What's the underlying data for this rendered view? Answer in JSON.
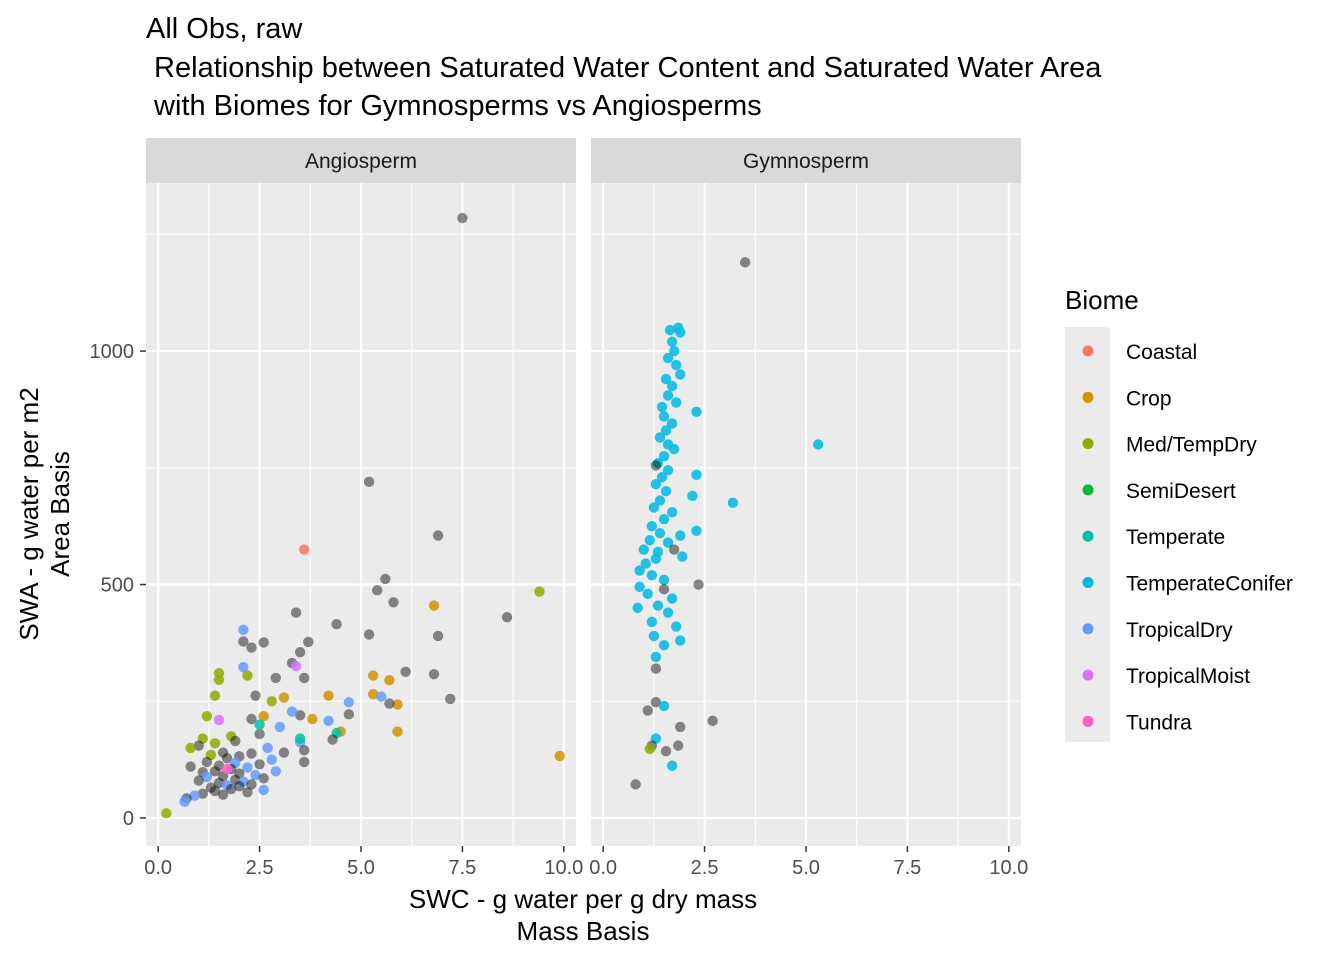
{
  "chart_data": {
    "type": "scatter",
    "title_lines": [
      "All Obs, raw",
      " Relationship between Saturated Water Content and Saturated Water Area",
      " with Biomes for Gymnosperms vs Angiosperms"
    ],
    "xlabel_lines": [
      "SWC - g water per g dry mass",
      "Mass Basis"
    ],
    "ylabel_lines": [
      "SWA - g water per m2",
      "Area Basis"
    ],
    "xlim": [
      -0.3,
      10.3
    ],
    "ylim": [
      -60,
      1360
    ],
    "x_ticks": [
      {
        "value": 0,
        "label": "0.0"
      },
      {
        "value": 2.5,
        "label": "2.5"
      },
      {
        "value": 5,
        "label": "5.0"
      },
      {
        "value": 7.5,
        "label": "7.5"
      },
      {
        "value": 10,
        "label": "10.0"
      }
    ],
    "y_ticks": [
      {
        "value": 0,
        "label": "0"
      },
      {
        "value": 500,
        "label": "500"
      },
      {
        "value": 1000,
        "label": "1000"
      }
    ],
    "grid": true,
    "legend": {
      "title": "Biome",
      "position": "right",
      "entries": [
        {
          "name": "Coastal",
          "color": "#F8766D"
        },
        {
          "name": "Crop",
          "color": "#D39200"
        },
        {
          "name": "Med/TempDry",
          "color": "#93AA00"
        },
        {
          "name": "SemiDesert",
          "color": "#00BA38"
        },
        {
          "name": "Temperate",
          "color": "#00C19F"
        },
        {
          "name": "TemperateConifer",
          "color": "#00B9E3"
        },
        {
          "name": "TropicalDry",
          "color": "#619CFF"
        },
        {
          "name": "TropicalMoist",
          "color": "#DB72FB"
        },
        {
          "name": "Tundra",
          "color": "#FF61C3"
        }
      ]
    },
    "no_biome_color": "#000000",
    "panels": [
      {
        "strip": "Angiosperm",
        "points": [
          [
            7.5,
            1285,
            "none"
          ],
          [
            5.2,
            720,
            "none"
          ],
          [
            6.9,
            605,
            "none"
          ],
          [
            3.6,
            575,
            "Coastal"
          ],
          [
            9.4,
            485,
            "Med/TempDry"
          ],
          [
            5.6,
            512,
            "none"
          ],
          [
            5.4,
            488,
            "none"
          ],
          [
            5.8,
            462,
            "none"
          ],
          [
            6.8,
            455,
            "Crop"
          ],
          [
            3.4,
            440,
            "none"
          ],
          [
            8.6,
            430,
            "none"
          ],
          [
            4.4,
            415,
            "none"
          ],
          [
            5.2,
            393,
            "none"
          ],
          [
            6.9,
            390,
            "none"
          ],
          [
            2.1,
            403,
            "TropicalDry"
          ],
          [
            2.1,
            378,
            "none"
          ],
          [
            3.7,
            377,
            "none"
          ],
          [
            2.6,
            376,
            "none"
          ],
          [
            2.3,
            365,
            "none"
          ],
          [
            3.5,
            355,
            "none"
          ],
          [
            3.3,
            332,
            "none"
          ],
          [
            3.4,
            325,
            "TropicalMoist"
          ],
          [
            2.1,
            323,
            "TropicalDry"
          ],
          [
            6.1,
            313,
            "none"
          ],
          [
            1.5,
            310,
            "Med/TempDry"
          ],
          [
            6.8,
            308,
            "none"
          ],
          [
            1.5,
            296,
            "Med/TempDry"
          ],
          [
            5.3,
            305,
            "Crop"
          ],
          [
            2.2,
            305,
            "Med/TempDry"
          ],
          [
            2.9,
            300,
            "none"
          ],
          [
            5.7,
            295,
            "Crop"
          ],
          [
            3.6,
            300,
            "none"
          ],
          [
            7.2,
            255,
            "none"
          ],
          [
            5.3,
            265,
            "Crop"
          ],
          [
            5.5,
            260,
            "TropicalDry"
          ],
          [
            4.2,
            262,
            "Crop"
          ],
          [
            3.1,
            258,
            "Crop"
          ],
          [
            2.4,
            262,
            "none"
          ],
          [
            1.4,
            262,
            "Med/TempDry"
          ],
          [
            2.8,
            250,
            "Med/TempDry"
          ],
          [
            5.9,
            243,
            "Crop"
          ],
          [
            5.7,
            245,
            "none"
          ],
          [
            4.7,
            248,
            "TropicalDry"
          ],
          [
            4.7,
            222,
            "none"
          ],
          [
            3.5,
            220,
            "none"
          ],
          [
            3.3,
            228,
            "TropicalDry"
          ],
          [
            3.8,
            212,
            "Crop"
          ],
          [
            2.6,
            218,
            "Crop"
          ],
          [
            1.2,
            218,
            "Med/TempDry"
          ],
          [
            2.3,
            212,
            "none"
          ],
          [
            4.2,
            208,
            "TropicalDry"
          ],
          [
            4.5,
            185,
            "Crop"
          ],
          [
            5.9,
            185,
            "Crop"
          ],
          [
            4.4,
            182,
            "Temperate"
          ],
          [
            3.0,
            195,
            "TropicalDry"
          ],
          [
            4.3,
            168,
            "none"
          ],
          [
            9.9,
            133,
            "Crop"
          ],
          [
            3.5,
            162,
            "TropicalDry"
          ],
          [
            2.5,
            180,
            "none"
          ],
          [
            1.8,
            175,
            "Med/TempDry"
          ],
          [
            1.1,
            170,
            "Med/TempDry"
          ],
          [
            1.9,
            165,
            "none"
          ],
          [
            1.4,
            160,
            "Med/TempDry"
          ],
          [
            1.0,
            155,
            "none"
          ],
          [
            0.8,
            150,
            "Med/TempDry"
          ],
          [
            2.7,
            150,
            "TropicalDry"
          ],
          [
            3.1,
            140,
            "none"
          ],
          [
            3.6,
            145,
            "none"
          ],
          [
            1.6,
            140,
            "none"
          ],
          [
            2.3,
            138,
            "none"
          ],
          [
            1.3,
            135,
            "Med/TempDry"
          ],
          [
            2.0,
            132,
            "none"
          ],
          [
            1.7,
            128,
            "none"
          ],
          [
            2.8,
            125,
            "TropicalDry"
          ],
          [
            3.6,
            120,
            "none"
          ],
          [
            1.2,
            120,
            "none"
          ],
          [
            1.9,
            118,
            "TropicalDry"
          ],
          [
            2.5,
            115,
            "none"
          ],
          [
            1.5,
            112,
            "none"
          ],
          [
            0.8,
            110,
            "none"
          ],
          [
            2.2,
            108,
            "TropicalDry"
          ],
          [
            1.8,
            105,
            "none"
          ],
          [
            1.4,
            100,
            "none"
          ],
          [
            2.9,
            100,
            "TropicalDry"
          ],
          [
            1.1,
            98,
            "none"
          ],
          [
            2.0,
            95,
            "none"
          ],
          [
            2.4,
            92,
            "TropicalDry"
          ],
          [
            1.6,
            90,
            "none"
          ],
          [
            1.2,
            88,
            "TropicalDry"
          ],
          [
            2.6,
            85,
            "none"
          ],
          [
            1.9,
            82,
            "none"
          ],
          [
            1.0,
            80,
            "none"
          ],
          [
            2.1,
            78,
            "TropicalDry"
          ],
          [
            1.5,
            75,
            "none"
          ],
          [
            2.3,
            72,
            "none"
          ],
          [
            1.7,
            70,
            "TropicalDry"
          ],
          [
            2.0,
            68,
            "none"
          ],
          [
            1.3,
            65,
            "none"
          ],
          [
            1.8,
            62,
            "none"
          ],
          [
            2.6,
            60,
            "TropicalDry"
          ],
          [
            2.2,
            55,
            "none"
          ],
          [
            1.4,
            58,
            "none"
          ],
          [
            1.1,
            52,
            "none"
          ],
          [
            0.9,
            48,
            "TropicalDry"
          ],
          [
            1.6,
            50,
            "none"
          ],
          [
            0.7,
            42,
            "none"
          ],
          [
            0.65,
            35,
            "TropicalDry"
          ],
          [
            0.2,
            10,
            "Med/TempDry"
          ],
          [
            1.7,
            105,
            "Tundra"
          ],
          [
            1.5,
            210,
            "TropicalMoist"
          ],
          [
            2.5,
            200,
            "Temperate"
          ],
          [
            3.5,
            170,
            "Temperate"
          ]
        ]
      },
      {
        "strip": "Gymnosperm",
        "points": [
          [
            3.5,
            1190,
            "none"
          ],
          [
            1.85,
            1050,
            "TemperateConifer"
          ],
          [
            1.65,
            1045,
            "TemperateConifer"
          ],
          [
            1.9,
            1040,
            "TemperateConifer"
          ],
          [
            1.7,
            1020,
            "TemperateConifer"
          ],
          [
            1.75,
            1000,
            "TemperateConifer"
          ],
          [
            1.6,
            985,
            "TemperateConifer"
          ],
          [
            1.8,
            970,
            "TemperateConifer"
          ],
          [
            1.9,
            950,
            "TemperateConifer"
          ],
          [
            1.55,
            940,
            "TemperateConifer"
          ],
          [
            1.7,
            925,
            "TemperateConifer"
          ],
          [
            1.6,
            905,
            "TemperateConifer"
          ],
          [
            1.8,
            890,
            "TemperateConifer"
          ],
          [
            1.45,
            880,
            "TemperateConifer"
          ],
          [
            2.3,
            870,
            "TemperateConifer"
          ],
          [
            1.5,
            860,
            "TemperateConifer"
          ],
          [
            1.7,
            845,
            "TemperateConifer"
          ],
          [
            1.55,
            830,
            "TemperateConifer"
          ],
          [
            1.4,
            815,
            "TemperateConifer"
          ],
          [
            1.6,
            800,
            "TemperateConifer"
          ],
          [
            5.3,
            800,
            "TemperateConifer"
          ],
          [
            1.75,
            790,
            "TemperateConifer"
          ],
          [
            1.5,
            775,
            "TemperateConifer"
          ],
          [
            1.35,
            760,
            "TemperateConifer"
          ],
          [
            1.3,
            755,
            "none"
          ],
          [
            1.6,
            745,
            "TemperateConifer"
          ],
          [
            2.3,
            735,
            "TemperateConifer"
          ],
          [
            1.45,
            730,
            "TemperateConifer"
          ],
          [
            1.3,
            715,
            "TemperateConifer"
          ],
          [
            1.55,
            700,
            "TemperateConifer"
          ],
          [
            2.2,
            690,
            "TemperateConifer"
          ],
          [
            3.2,
            675,
            "TemperateConifer"
          ],
          [
            1.4,
            680,
            "TemperateConifer"
          ],
          [
            1.25,
            665,
            "TemperateConifer"
          ],
          [
            1.7,
            655,
            "TemperateConifer"
          ],
          [
            1.5,
            640,
            "TemperateConifer"
          ],
          [
            2.3,
            615,
            "TemperateConifer"
          ],
          [
            1.2,
            625,
            "TemperateConifer"
          ],
          [
            1.4,
            610,
            "TemperateConifer"
          ],
          [
            1.9,
            605,
            "TemperateConifer"
          ],
          [
            1.15,
            595,
            "TemperateConifer"
          ],
          [
            1.6,
            590,
            "TemperateConifer"
          ],
          [
            1.0,
            575,
            "TemperateConifer"
          ],
          [
            1.35,
            570,
            "TemperateConifer"
          ],
          [
            1.75,
            575,
            "none"
          ],
          [
            1.3,
            555,
            "TemperateConifer"
          ],
          [
            1.05,
            545,
            "TemperateConifer"
          ],
          [
            1.95,
            560,
            "TemperateConifer"
          ],
          [
            0.9,
            530,
            "TemperateConifer"
          ],
          [
            1.2,
            520,
            "TemperateConifer"
          ],
          [
            1.5,
            510,
            "TemperateConifer"
          ],
          [
            2.35,
            500,
            "none"
          ],
          [
            1.5,
            490,
            "none"
          ],
          [
            0.9,
            495,
            "TemperateConifer"
          ],
          [
            1.1,
            480,
            "TemperateConifer"
          ],
          [
            1.7,
            470,
            "TemperateConifer"
          ],
          [
            1.35,
            455,
            "TemperateConifer"
          ],
          [
            0.85,
            450,
            "TemperateConifer"
          ],
          [
            1.6,
            440,
            "TemperateConifer"
          ],
          [
            1.2,
            420,
            "TemperateConifer"
          ],
          [
            1.8,
            410,
            "TemperateConifer"
          ],
          [
            1.25,
            390,
            "TemperateConifer"
          ],
          [
            1.9,
            380,
            "TemperateConifer"
          ],
          [
            1.5,
            370,
            "TemperateConifer"
          ],
          [
            1.3,
            345,
            "TemperateConifer"
          ],
          [
            1.3,
            320,
            "none"
          ],
          [
            1.1,
            230,
            "none"
          ],
          [
            1.3,
            248,
            "none"
          ],
          [
            1.5,
            240,
            "TemperateConifer"
          ],
          [
            1.9,
            195,
            "none"
          ],
          [
            2.7,
            208,
            "none"
          ],
          [
            1.3,
            170,
            "TemperateConifer"
          ],
          [
            1.85,
            155,
            "none"
          ],
          [
            1.2,
            155,
            "none"
          ],
          [
            1.15,
            148,
            "Med/TempDry"
          ],
          [
            1.55,
            143,
            "none"
          ],
          [
            1.7,
            112,
            "TemperateConifer"
          ],
          [
            0.8,
            72,
            "none"
          ]
        ]
      }
    ]
  }
}
